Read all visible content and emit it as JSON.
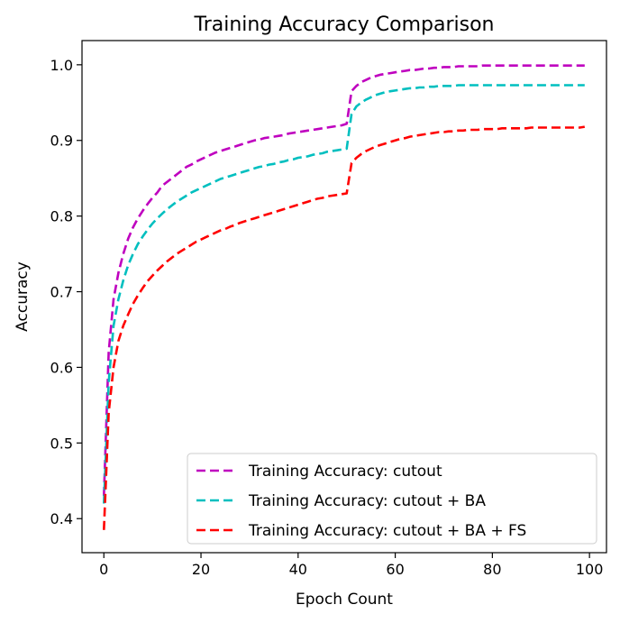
{
  "chart_data": {
    "type": "line",
    "title": "Training Accuracy Comparison",
    "xlabel": "Epoch Count",
    "ylabel": "Accuracy",
    "xlim": [
      -4.5,
      103.5
    ],
    "ylim": [
      0.355,
      1.032
    ],
    "xticks": [
      0,
      20,
      40,
      60,
      80,
      100
    ],
    "yticks": [
      0.4,
      0.5,
      0.6,
      0.7,
      0.8,
      0.9,
      1.0
    ],
    "xtick_labels": [
      "0",
      "20",
      "40",
      "60",
      "80",
      "100"
    ],
    "ytick_labels": [
      "0.4",
      "0.5",
      "0.6",
      "0.7",
      "0.8",
      "0.9",
      "1.0"
    ],
    "grid": false,
    "legend_position": "lower-right",
    "line_style": "dashed",
    "x": [
      0,
      1,
      2,
      3,
      4,
      5,
      6,
      7,
      8,
      9,
      10,
      11,
      12,
      13,
      14,
      15,
      16,
      17,
      18,
      19,
      20,
      21,
      22,
      23,
      24,
      25,
      26,
      27,
      28,
      29,
      30,
      31,
      32,
      33,
      34,
      35,
      36,
      37,
      38,
      39,
      40,
      41,
      42,
      43,
      44,
      45,
      46,
      47,
      48,
      49,
      50,
      51,
      52,
      53,
      54,
      55,
      56,
      57,
      58,
      59,
      60,
      61,
      62,
      63,
      64,
      65,
      66,
      67,
      68,
      69,
      70,
      71,
      72,
      73,
      74,
      75,
      76,
      77,
      78,
      79,
      80,
      81,
      82,
      83,
      84,
      85,
      86,
      87,
      88,
      89,
      90,
      91,
      92,
      93,
      94,
      95,
      96,
      97,
      98,
      99
    ],
    "series": [
      {
        "name": "Training Accuracy: cutout",
        "color": "#bf00bf",
        "values": [
          0.43,
          0.62,
          0.69,
          0.725,
          0.75,
          0.77,
          0.785,
          0.797,
          0.807,
          0.816,
          0.824,
          0.831,
          0.84,
          0.845,
          0.85,
          0.855,
          0.86,
          0.865,
          0.868,
          0.872,
          0.875,
          0.878,
          0.881,
          0.884,
          0.886,
          0.888,
          0.89,
          0.892,
          0.894,
          0.896,
          0.898,
          0.9,
          0.901,
          0.903,
          0.904,
          0.905,
          0.906,
          0.907,
          0.909,
          0.91,
          0.911,
          0.912,
          0.913,
          0.914,
          0.915,
          0.916,
          0.917,
          0.918,
          0.919,
          0.92,
          0.922,
          0.965,
          0.972,
          0.977,
          0.98,
          0.983,
          0.985,
          0.987,
          0.988,
          0.989,
          0.99,
          0.991,
          0.992,
          0.993,
          0.993,
          0.994,
          0.995,
          0.995,
          0.996,
          0.996,
          0.997,
          0.997,
          0.997,
          0.998,
          0.998,
          0.998,
          0.998,
          0.998,
          0.999,
          0.999,
          0.999,
          0.999,
          0.999,
          0.999,
          0.999,
          0.999,
          0.999,
          0.999,
          0.999,
          0.999,
          0.999,
          0.999,
          0.999,
          0.999,
          0.999,
          0.999,
          0.999,
          0.999,
          0.999,
          0.999
        ]
      },
      {
        "name": "Training Accuracy: cutout + BA",
        "color": "#00bfbf",
        "values": [
          0.42,
          0.58,
          0.655,
          0.69,
          0.715,
          0.735,
          0.75,
          0.763,
          0.773,
          0.782,
          0.79,
          0.797,
          0.803,
          0.809,
          0.814,
          0.819,
          0.823,
          0.827,
          0.831,
          0.834,
          0.837,
          0.84,
          0.843,
          0.846,
          0.849,
          0.851,
          0.853,
          0.855,
          0.857,
          0.859,
          0.861,
          0.863,
          0.865,
          0.866,
          0.868,
          0.869,
          0.871,
          0.872,
          0.874,
          0.875,
          0.877,
          0.878,
          0.879,
          0.881,
          0.882,
          0.883,
          0.885,
          0.886,
          0.887,
          0.888,
          0.889,
          0.935,
          0.945,
          0.95,
          0.954,
          0.957,
          0.96,
          0.962,
          0.964,
          0.965,
          0.966,
          0.967,
          0.968,
          0.969,
          0.969,
          0.97,
          0.97,
          0.971,
          0.971,
          0.972,
          0.972,
          0.972,
          0.972,
          0.973,
          0.973,
          0.973,
          0.973,
          0.973,
          0.973,
          0.973,
          0.973,
          0.973,
          0.973,
          0.973,
          0.973,
          0.973,
          0.973,
          0.973,
          0.973,
          0.973,
          0.973,
          0.973,
          0.973,
          0.973,
          0.973,
          0.973,
          0.973,
          0.973,
          0.973,
          0.973
        ]
      },
      {
        "name": "Training Accuracy: cutout + BA + FS",
        "color": "#ff0000",
        "values": [
          0.385,
          0.54,
          0.6,
          0.635,
          0.655,
          0.67,
          0.684,
          0.695,
          0.705,
          0.714,
          0.721,
          0.728,
          0.734,
          0.74,
          0.745,
          0.75,
          0.754,
          0.758,
          0.762,
          0.766,
          0.769,
          0.772,
          0.775,
          0.778,
          0.781,
          0.783,
          0.786,
          0.788,
          0.791,
          0.793,
          0.795,
          0.797,
          0.799,
          0.801,
          0.803,
          0.805,
          0.807,
          0.809,
          0.811,
          0.813,
          0.815,
          0.817,
          0.819,
          0.821,
          0.823,
          0.824,
          0.826,
          0.827,
          0.828,
          0.829,
          0.83,
          0.87,
          0.877,
          0.882,
          0.886,
          0.889,
          0.892,
          0.894,
          0.896,
          0.898,
          0.9,
          0.902,
          0.903,
          0.905,
          0.906,
          0.907,
          0.908,
          0.909,
          0.91,
          0.911,
          0.911,
          0.912,
          0.912,
          0.913,
          0.913,
          0.914,
          0.914,
          0.914,
          0.915,
          0.915,
          0.915,
          0.915,
          0.916,
          0.916,
          0.916,
          0.916,
          0.916,
          0.916,
          0.917,
          0.917,
          0.917,
          0.917,
          0.917,
          0.917,
          0.917,
          0.917,
          0.917,
          0.917,
          0.917,
          0.918
        ]
      }
    ]
  }
}
